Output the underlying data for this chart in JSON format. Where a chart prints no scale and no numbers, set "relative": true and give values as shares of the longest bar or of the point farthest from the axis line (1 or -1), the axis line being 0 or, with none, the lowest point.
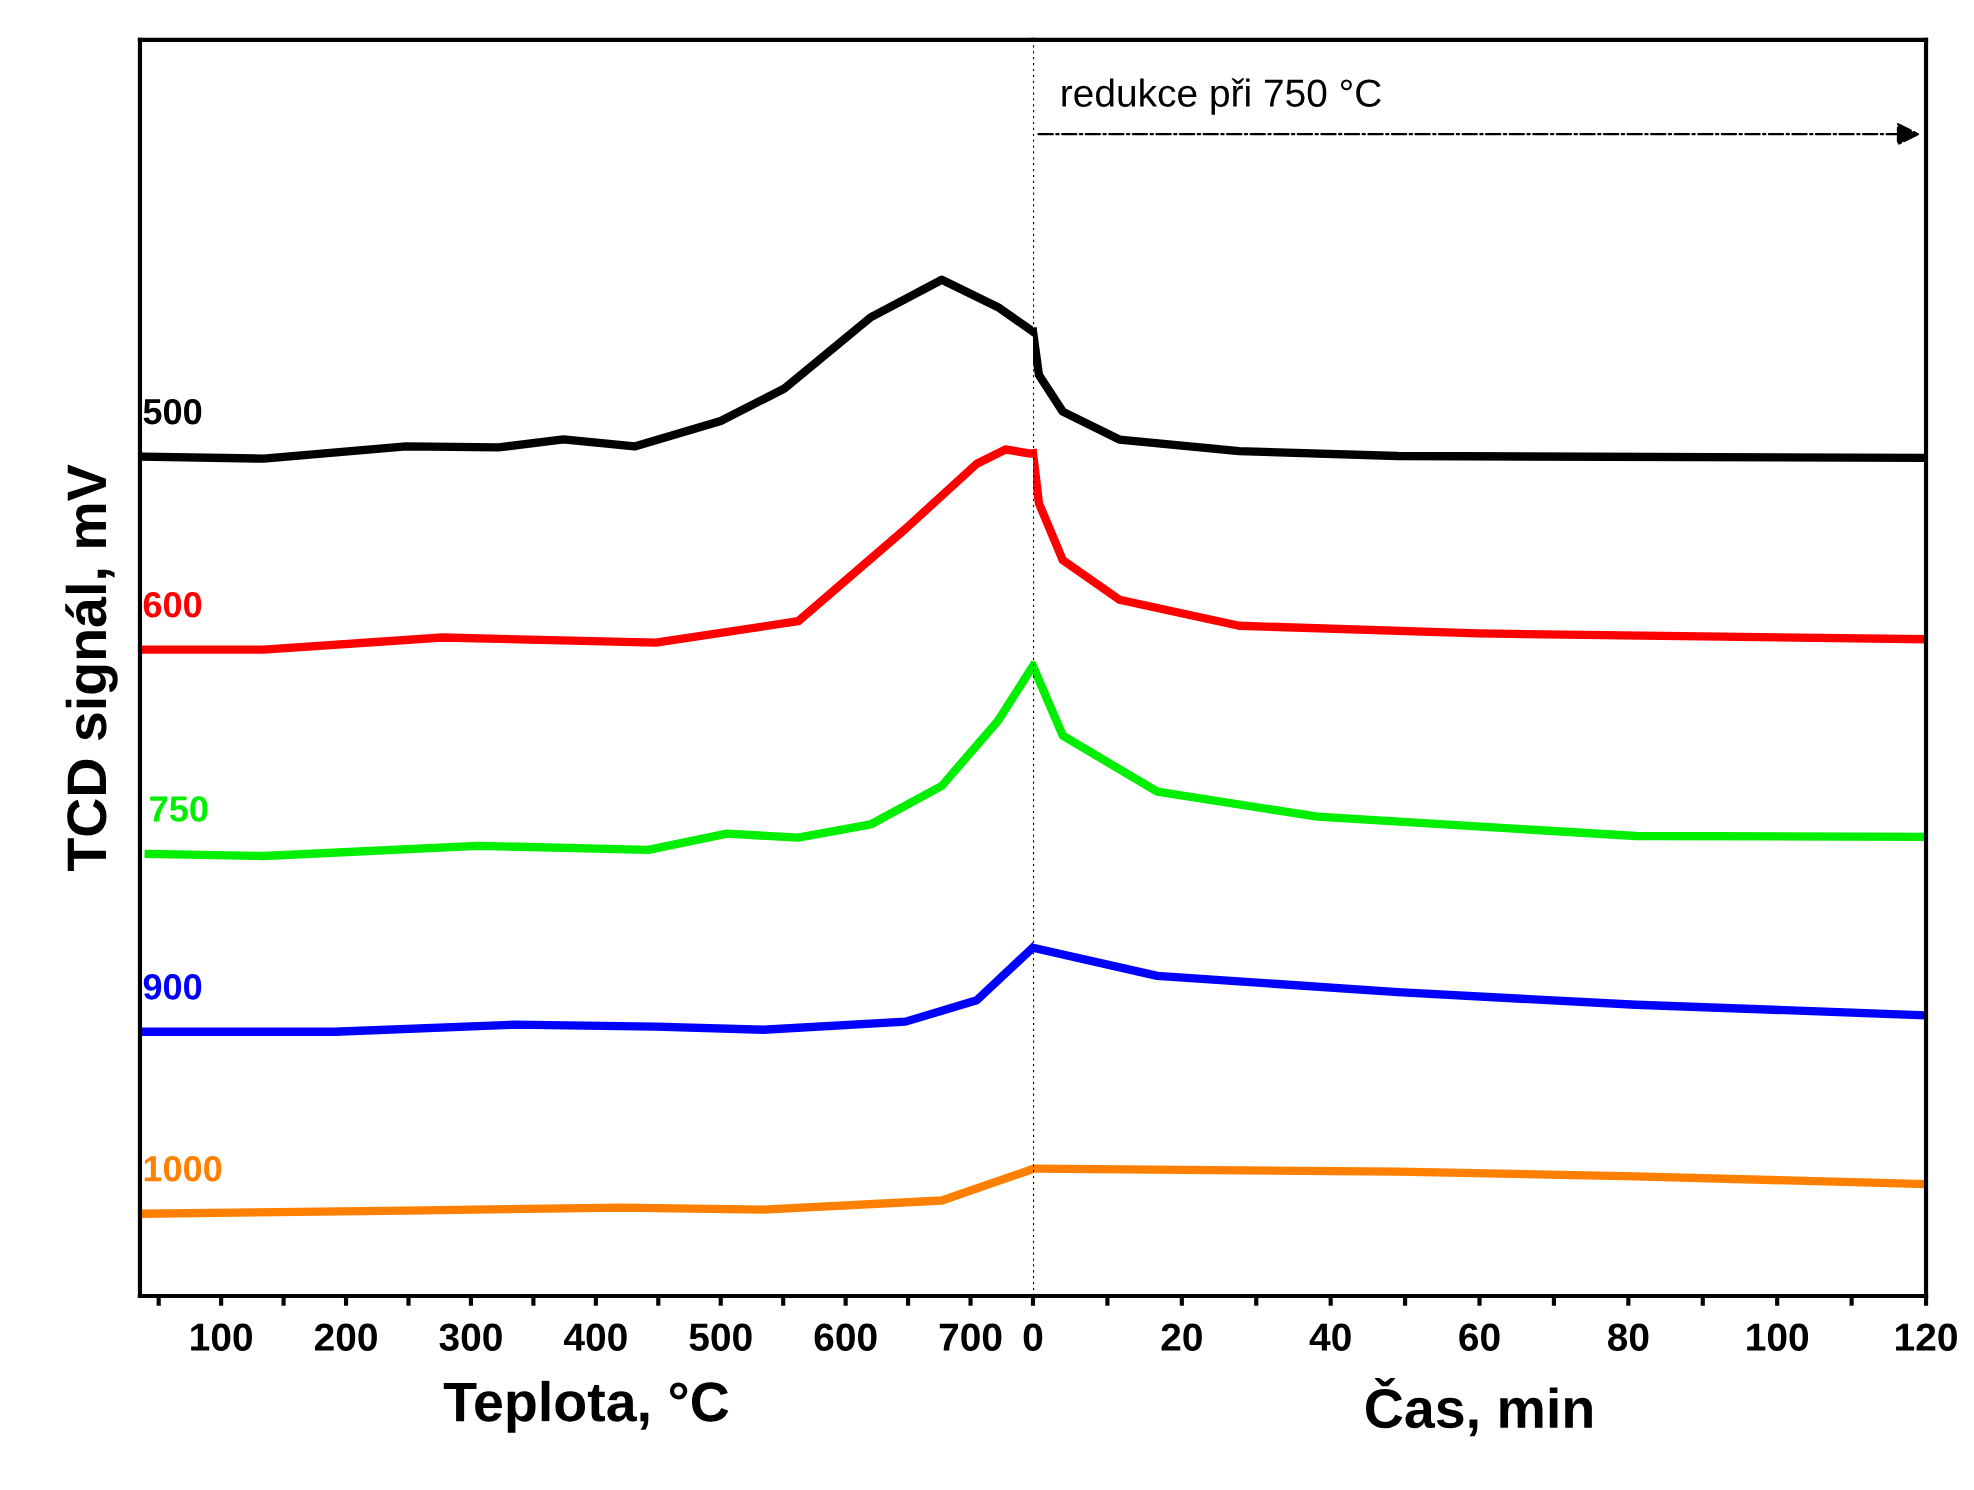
{
  "chart_data": [
    {
      "type": "line",
      "relative": true,
      "xlabel": "Teplota, °C",
      "ylabel": "TCD signál, mV",
      "xlim": [
        35,
        750
      ],
      "xticks": [
        {
          "value": 50,
          "label": null
        },
        100,
        {
          "value": 150,
          "label": null
        },
        200,
        {
          "value": 250,
          "label": null
        },
        300,
        {
          "value": 350,
          "label": null
        },
        400,
        {
          "value": 450,
          "label": null
        },
        500,
        {
          "value": 550,
          "label": null
        },
        600,
        {
          "value": 650,
          "label": null
        },
        700
      ],
      "tick_labels": "x",
      "grid": false,
      "legend": false,
      "marker": "none",
      "line_style": "solid",
      "series": [
        {
          "name": "500",
          "color": "#000000",
          "x": [
            37,
            134,
            248,
            322,
            374,
            431,
            500,
            551,
            620,
            677,
            722,
            750
          ],
          "values": [
            0.826,
            0.824,
            0.836,
            0.835,
            0.843,
            0.836,
            0.861,
            0.893,
            0.963,
            1.0,
            0.973,
            0.949
          ]
        },
        {
          "name": "600",
          "color": "#ff0000",
          "x": [
            37,
            134,
            277,
            448,
            562,
            648,
            705,
            728,
            748,
            750
          ],
          "values": [
            0.636,
            0.636,
            0.648,
            0.643,
            0.664,
            0.755,
            0.819,
            0.833,
            0.829,
            0.829
          ]
        },
        {
          "name": "750",
          "color": "#00ee00",
          "x": [
            42,
            134,
            305,
            442,
            505,
            562,
            620,
            677,
            722,
            750
          ],
          "values": [
            0.435,
            0.433,
            0.443,
            0.439,
            0.455,
            0.451,
            0.464,
            0.502,
            0.566,
            0.62
          ]
        },
        {
          "name": "900",
          "color": "#0000ff",
          "x": [
            37,
            191,
            334,
            448,
            534,
            648,
            705,
            750
          ],
          "values": [
            0.26,
            0.26,
            0.267,
            0.265,
            0.262,
            0.27,
            0.291,
            0.343
          ]
        },
        {
          "name": "1000",
          "color": "#ff8000",
          "x": [
            37,
            248,
            420,
            534,
            677,
            750
          ],
          "values": [
            0.081,
            0.084,
            0.087,
            0.085,
            0.094,
            0.125
          ]
        }
      ]
    },
    {
      "type": "line",
      "relative": true,
      "xlabel": "Čas, min",
      "xlim": [
        0,
        120
      ],
      "xticks": [
        0,
        {
          "value": 10,
          "label": null
        },
        20,
        {
          "value": 30,
          "label": null
        },
        40,
        {
          "value": 50,
          "label": null
        },
        60,
        {
          "value": 70,
          "label": null
        },
        80,
        {
          "value": 90,
          "label": null
        },
        100,
        {
          "value": 110,
          "label": null
        },
        120
      ],
      "tick_labels": "x",
      "grid": false,
      "legend": false,
      "marker": "none",
      "line_style": "solid",
      "ref_lines": [
        {
          "axis": "x",
          "value": 0,
          "color": "#000000",
          "line_style": "dotted"
        }
      ],
      "annotations": [
        "redukce při 750 °C"
      ],
      "series": [
        {
          "color": "#000000",
          "x": [
            0,
            0.8,
            4,
            11.6,
            27.7,
            49,
            120
          ],
          "values": [
            1.0,
            0.955,
            0.917,
            0.888,
            0.876,
            0.871,
            0.869
          ]
        },
        {
          "color": "#ff0000",
          "x": [
            0,
            0.8,
            4,
            11.6,
            27.7,
            59.8,
            120
          ],
          "values": [
            0.874,
            0.822,
            0.763,
            0.722,
            0.695,
            0.687,
            0.681
          ]
        },
        {
          "color": "#00ee00",
          "x": [
            0,
            4,
            16.7,
            38.2,
            81,
            120
          ],
          "values": [
            0.653,
            0.581,
            0.523,
            0.497,
            0.477,
            0.476
          ]
        },
        {
          "color": "#0000ff",
          "x": [
            0,
            16.7,
            49,
            81,
            120
          ],
          "values": [
            0.361,
            0.332,
            0.315,
            0.302,
            0.291
          ]
        },
        {
          "color": "#ff8000",
          "x": [
            0,
            49,
            81,
            120
          ],
          "values": [
            0.132,
            0.129,
            0.124,
            0.116
          ]
        }
      ]
    }
  ]
}
